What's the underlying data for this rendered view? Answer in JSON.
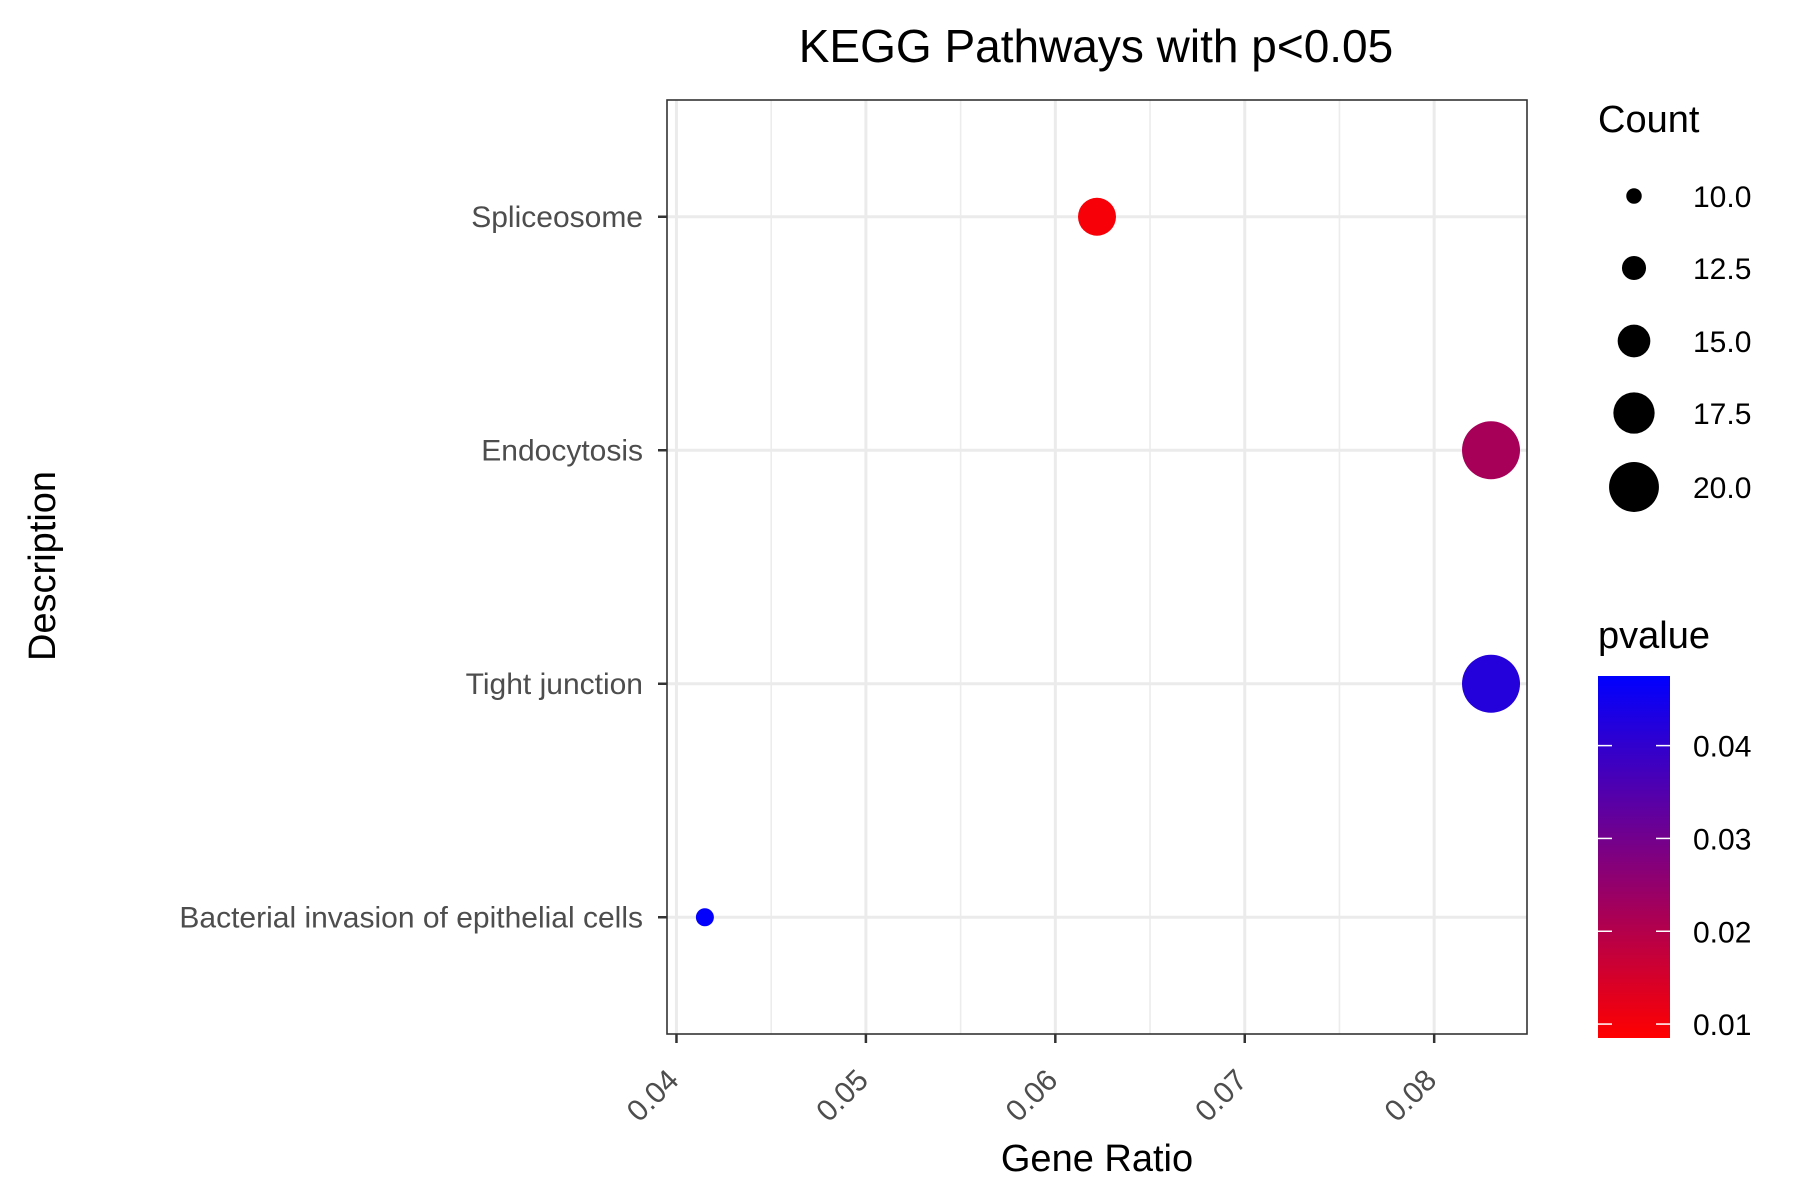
{
  "chart_data": {
    "type": "scatter",
    "title": "KEGG Pathways with p<0.05",
    "xlabel": "Gene Ratio",
    "ylabel": "Description",
    "xlim": [
      0.0395,
      0.0849
    ],
    "x_ticks": [
      "0.04",
      "0.05",
      "0.06",
      "0.07",
      "0.08"
    ],
    "x_tick_values": [
      0.04,
      0.05,
      0.06,
      0.07,
      0.08
    ],
    "categories": [
      "Spliceosome",
      "Endocytosis",
      "Tight junction",
      "Bacterial invasion of epithelial cells"
    ],
    "points": [
      {
        "description": "Spliceosome",
        "gene_ratio": 0.0622,
        "count": 15,
        "pvalue": 0.0095
      },
      {
        "description": "Endocytosis",
        "gene_ratio": 0.083,
        "count": 20,
        "pvalue": 0.022
      },
      {
        "description": "Tight junction",
        "gene_ratio": 0.083,
        "count": 20,
        "pvalue": 0.042
      },
      {
        "description": "Bacterial invasion of epithelial cells",
        "gene_ratio": 0.0415,
        "count": 10,
        "pvalue": 0.047
      }
    ],
    "grid": true,
    "size_legend": {
      "title": "Count",
      "labels": [
        "10.0",
        "12.5",
        "15.0",
        "17.5",
        "20.0"
      ],
      "values": [
        10,
        12.5,
        15,
        17.5,
        20
      ]
    },
    "color_legend": {
      "title": "pvalue",
      "labels": [
        "0.04",
        "0.03",
        "0.02",
        "0.01"
      ],
      "values": [
        0.04,
        0.03,
        0.02,
        0.01
      ],
      "range": [
        0.0085,
        0.0475
      ],
      "low_color": "#ff0000",
      "high_color": "#0000ff"
    },
    "legend_position": "right"
  }
}
